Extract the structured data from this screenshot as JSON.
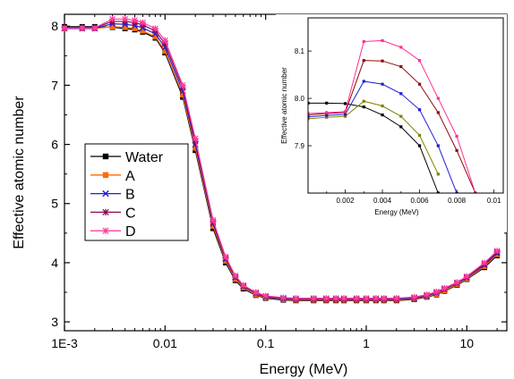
{
  "chart_data": [
    {
      "type": "line",
      "xscale": "log",
      "xlabel": "Energy (MeV)",
      "ylabel": "Effective atomic number",
      "xlim": [
        0.001,
        25
      ],
      "ylim": [
        2.85,
        8.2
      ],
      "xticks": [
        {
          "value": 0.001,
          "label": "1E-3"
        },
        {
          "value": 0.01,
          "label": "0.01"
        },
        {
          "value": 0.1,
          "label": "0.1"
        },
        {
          "value": 1,
          "label": "1"
        },
        {
          "value": 10,
          "label": "10"
        }
      ],
      "yticks": [
        3,
        4,
        5,
        6,
        7,
        8
      ],
      "legend_position": "left-middle",
      "x": [
        0.001,
        0.0015,
        0.002,
        0.003,
        0.004,
        0.005,
        0.006,
        0.008,
        0.01,
        0.015,
        0.02,
        0.03,
        0.04,
        0.05,
        0.06,
        0.08,
        0.1,
        0.15,
        0.2,
        0.3,
        0.4,
        0.5,
        0.6,
        0.8,
        1,
        1.25,
        1.5,
        2,
        3,
        4,
        5,
        6,
        8,
        10,
        15,
        20
      ],
      "series": [
        {
          "name": "Water",
          "color": "#000000",
          "marker": "square",
          "values": [
            7.99,
            7.99,
            7.99,
            7.98,
            7.96,
            7.94,
            7.9,
            7.8,
            7.55,
            6.8,
            5.9,
            4.58,
            4.0,
            3.7,
            3.56,
            3.45,
            3.4,
            3.37,
            3.36,
            3.36,
            3.36,
            3.36,
            3.36,
            3.36,
            3.36,
            3.36,
            3.36,
            3.36,
            3.38,
            3.42,
            3.46,
            3.52,
            3.62,
            3.72,
            3.92,
            4.12
          ]
        },
        {
          "name": "A",
          "color": "#ff6a00",
          "marker": "square",
          "values": [
            7.96,
            7.96,
            7.96,
            7.99,
            7.98,
            7.96,
            7.92,
            7.82,
            7.58,
            6.84,
            5.94,
            4.62,
            4.03,
            3.72,
            3.58,
            3.46,
            3.41,
            3.38,
            3.37,
            3.37,
            3.37,
            3.37,
            3.37,
            3.37,
            3.37,
            3.37,
            3.37,
            3.37,
            3.39,
            3.43,
            3.47,
            3.53,
            3.63,
            3.73,
            3.94,
            4.14
          ]
        },
        {
          "name": "B",
          "color": "#1f1fd6",
          "marker": "x",
          "values": [
            7.96,
            7.96,
            7.96,
            8.04,
            8.03,
            8.01,
            7.97,
            7.87,
            7.64,
            6.9,
            6.0,
            4.66,
            4.06,
            3.75,
            3.6,
            3.48,
            3.42,
            3.39,
            3.38,
            3.38,
            3.38,
            3.38,
            3.38,
            3.38,
            3.38,
            3.38,
            3.38,
            3.38,
            3.4,
            3.44,
            3.49,
            3.55,
            3.65,
            3.75,
            3.96,
            4.16
          ]
        },
        {
          "name": "C",
          "color": "#8b0a50",
          "marker": "star",
          "values": [
            7.97,
            7.97,
            7.97,
            8.08,
            8.08,
            8.06,
            8.02,
            7.92,
            7.7,
            6.96,
            6.05,
            4.69,
            4.08,
            3.76,
            3.61,
            3.49,
            3.43,
            3.4,
            3.39,
            3.39,
            3.39,
            3.39,
            3.39,
            3.39,
            3.39,
            3.39,
            3.39,
            3.39,
            3.41,
            3.45,
            3.5,
            3.56,
            3.66,
            3.76,
            3.98,
            4.18
          ]
        },
        {
          "name": "D",
          "color": "#ff3fa0",
          "marker": "star",
          "values": [
            7.97,
            7.97,
            7.97,
            8.12,
            8.12,
            8.1,
            8.06,
            7.96,
            7.76,
            7.0,
            6.1,
            4.72,
            4.1,
            3.78,
            3.62,
            3.5,
            3.44,
            3.41,
            3.4,
            3.4,
            3.4,
            3.4,
            3.4,
            3.4,
            3.4,
            3.4,
            3.4,
            3.4,
            3.42,
            3.46,
            3.51,
            3.57,
            3.67,
            3.77,
            4.0,
            4.2
          ]
        }
      ]
    },
    {
      "type": "line",
      "role": "inset",
      "xlabel": "Energy (MeV)",
      "ylabel": "Effective atomic number",
      "xlim": [
        0,
        0.0105
      ],
      "ylim": [
        7.8,
        8.17
      ],
      "xticks": [
        {
          "value": 0.002,
          "label": "0.002"
        },
        {
          "value": 0.004,
          "label": "0.004"
        },
        {
          "value": 0.006,
          "label": "0.006"
        },
        {
          "value": 0.008,
          "label": "0.008"
        },
        {
          "value": 0.01,
          "label": "0.01"
        }
      ],
      "yticks": [
        {
          "value": 7.9,
          "label": "7.9"
        },
        {
          "value": 8.0,
          "label": "8.0"
        },
        {
          "value": 8.1,
          "label": "8.1"
        }
      ],
      "series": [
        {
          "name": "Water",
          "color": "#000000",
          "x": [
            0,
            0.001,
            0.002,
            0.003,
            0.004,
            0.005,
            0.006,
            0.007
          ],
          "values": [
            7.99,
            7.99,
            7.989,
            7.982,
            7.965,
            7.94,
            7.9,
            7.8
          ]
        },
        {
          "name": "A",
          "color": "#808000",
          "x": [
            0,
            0.001,
            0.002,
            0.003,
            0.004,
            0.005,
            0.006,
            0.007
          ],
          "values": [
            7.957,
            7.96,
            7.962,
            7.994,
            7.984,
            7.962,
            7.922,
            7.84
          ]
        },
        {
          "name": "B",
          "color": "#1f1fd6",
          "x": [
            0,
            0.001,
            0.002,
            0.003,
            0.004,
            0.005,
            0.006,
            0.007,
            0.008
          ],
          "values": [
            7.961,
            7.964,
            7.966,
            8.036,
            8.03,
            8.01,
            7.976,
            7.9,
            7.8
          ]
        },
        {
          "name": "C",
          "color": "#8b0a0a",
          "x": [
            0,
            0.001,
            0.002,
            0.003,
            0.004,
            0.005,
            0.006,
            0.007,
            0.008,
            0.009
          ],
          "values": [
            7.965,
            7.968,
            7.97,
            8.08,
            8.079,
            8.067,
            8.03,
            7.97,
            7.89,
            7.8
          ]
        },
        {
          "name": "D",
          "color": "#ff2f90",
          "x": [
            0,
            0.001,
            0.002,
            0.003,
            0.004,
            0.005,
            0.006,
            0.007,
            0.008,
            0.009
          ],
          "values": [
            7.968,
            7.97,
            7.972,
            8.12,
            8.122,
            8.108,
            8.08,
            8.0,
            7.92,
            7.8
          ]
        }
      ]
    }
  ]
}
